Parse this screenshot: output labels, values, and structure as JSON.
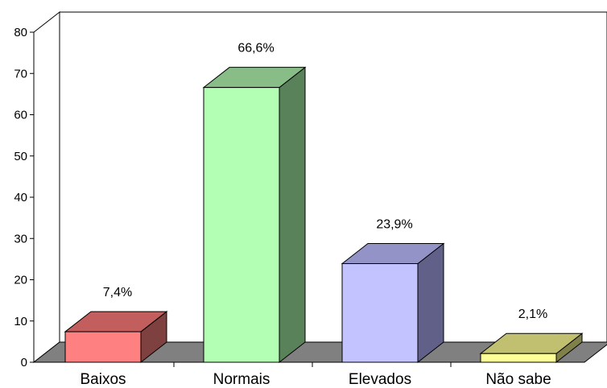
{
  "chart_data": {
    "type": "bar",
    "style": "3d",
    "categories": [
      "Baixos",
      "Normais",
      "Elevados",
      "Não sabe"
    ],
    "values": [
      7.4,
      66.6,
      23.9,
      2.1
    ],
    "data_labels": [
      "7,4%",
      "66,6%",
      "23,9%",
      "2,1%"
    ],
    "ylim": [
      0,
      80
    ],
    "yticks": [
      0,
      10,
      20,
      30,
      40,
      50,
      60,
      70,
      80
    ],
    "ytick_labels": [
      "0",
      "10",
      "20",
      "30",
      "40",
      "50",
      "60",
      "70",
      "80"
    ],
    "title": "",
    "xlabel": "",
    "ylabel": "",
    "grid": false,
    "legend": "none",
    "colors": {
      "front": [
        "#ff8080",
        "#b3ffb3",
        "#c3c3ff",
        "#ffff99"
      ],
      "top": [
        "#c25e5e",
        "#88bd88",
        "#9393c8",
        "#c0c070"
      ],
      "side": [
        "#7f4040",
        "#5a825a",
        "#606088",
        "#80804a"
      ],
      "floor": "#808080",
      "axis": "#000000"
    }
  }
}
